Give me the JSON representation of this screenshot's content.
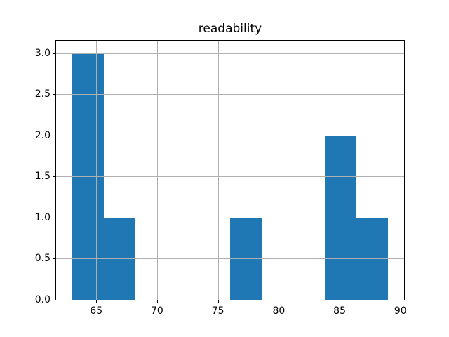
{
  "figure": {
    "background": "#ffffff"
  },
  "chart_data": {
    "type": "bar",
    "subtype": "histogram",
    "title": "readability",
    "xlabel": "",
    "ylabel": "",
    "bin_edges": [
      63.0,
      65.6,
      68.2,
      70.8,
      73.4,
      76.0,
      78.6,
      81.2,
      83.8,
      86.4,
      89.0
    ],
    "counts": [
      3,
      1,
      0,
      0,
      0,
      1,
      0,
      0,
      2,
      1
    ],
    "xlim": [
      61.7,
      90.3
    ],
    "ylim": [
      0,
      3.15
    ],
    "xticks": [
      65,
      70,
      75,
      80,
      85,
      90
    ],
    "xtick_labels": [
      "65",
      "70",
      "75",
      "80",
      "85",
      "90"
    ],
    "yticks": [
      0,
      0.5,
      1,
      1.5,
      2,
      2.5,
      3
    ],
    "ytick_labels": [
      "0.0",
      "0.5",
      "1.0",
      "1.5",
      "2.0",
      "2.5",
      "3.0"
    ],
    "grid": true,
    "grid_on_top_of_bars": true,
    "legend_position": "none",
    "bar_color": "#1f77b4",
    "grid_color": "#b0b0b0",
    "spine_color": "#000000",
    "text_color": "#000000"
  }
}
